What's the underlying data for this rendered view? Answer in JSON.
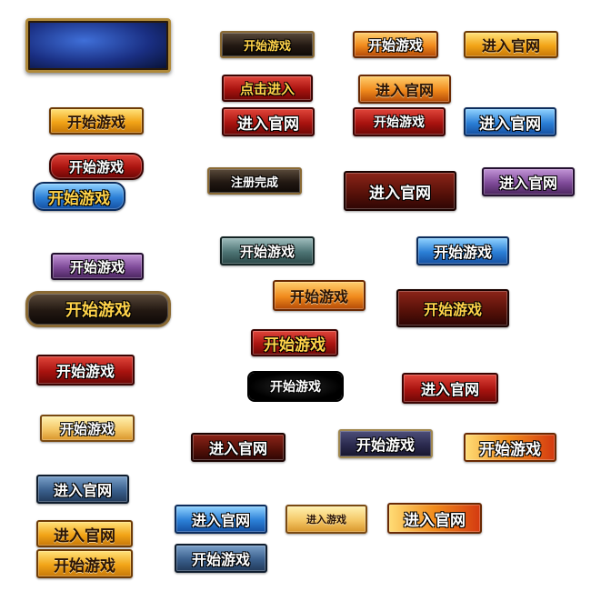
{
  "buttons": [
    {
      "name": "panel-blank",
      "label": ""
    },
    {
      "name": "start-game-black",
      "label": "开始游戏"
    },
    {
      "name": "start-game-orange",
      "label": "开始游戏"
    },
    {
      "name": "enter-site-gold",
      "label": "进入官网"
    },
    {
      "name": "click-enter-red",
      "label": "点击进入"
    },
    {
      "name": "enter-site-orange-ornate",
      "label": "进入官网"
    },
    {
      "name": "start-game-gold",
      "label": "开始游戏"
    },
    {
      "name": "enter-site-red",
      "label": "进入官网"
    },
    {
      "name": "start-game-red",
      "label": "开始游戏"
    },
    {
      "name": "enter-site-blue",
      "label": "进入官网"
    },
    {
      "name": "start-game-red-pill",
      "label": "开始游戏"
    },
    {
      "name": "register-complete-black",
      "label": "注册完成"
    },
    {
      "name": "enter-site-darkred",
      "label": "进入官网"
    },
    {
      "name": "enter-site-purple",
      "label": "进入官网"
    },
    {
      "name": "start-game-blue-pill",
      "label": "开始游戏"
    },
    {
      "name": "start-game-teal",
      "label": "开始游戏"
    },
    {
      "name": "start-game-blue",
      "label": "开始游戏"
    },
    {
      "name": "start-game-purple",
      "label": "开始游戏"
    },
    {
      "name": "start-game-orange-ornate",
      "label": "开始游戏"
    },
    {
      "name": "start-game-black-ornate",
      "label": "开始游戏"
    },
    {
      "name": "start-game-darkred-ornate",
      "label": "开始游戏"
    },
    {
      "name": "start-game-red-gold",
      "label": "开始游戏"
    },
    {
      "name": "start-game-red-2",
      "label": "开始游戏"
    },
    {
      "name": "start-game-splat",
      "label": "开始游戏"
    },
    {
      "name": "enter-site-red-2",
      "label": "进入官网"
    },
    {
      "name": "start-game-gold-2",
      "label": "开始游戏"
    },
    {
      "name": "enter-site-darkred-2",
      "label": "进入官网"
    },
    {
      "name": "start-game-navy",
      "label": "开始游戏"
    },
    {
      "name": "start-game-gradient",
      "label": "开始游戏"
    },
    {
      "name": "enter-site-steel",
      "label": "进入官网"
    },
    {
      "name": "enter-site-blue-2",
      "label": "进入官网"
    },
    {
      "name": "enter-site-cream",
      "label": "进入游戏"
    },
    {
      "name": "enter-site-gradient",
      "label": "进入官网"
    },
    {
      "name": "enter-site-gold-2",
      "label": "进入官网"
    },
    {
      "name": "start-game-steel",
      "label": "开始游戏"
    },
    {
      "name": "start-game-gold-3",
      "label": "开始游戏"
    }
  ],
  "colors": {
    "background": "#ffffff",
    "gold": "#f2a417",
    "red": "#a9130f",
    "blue": "#2b7fd6"
  }
}
